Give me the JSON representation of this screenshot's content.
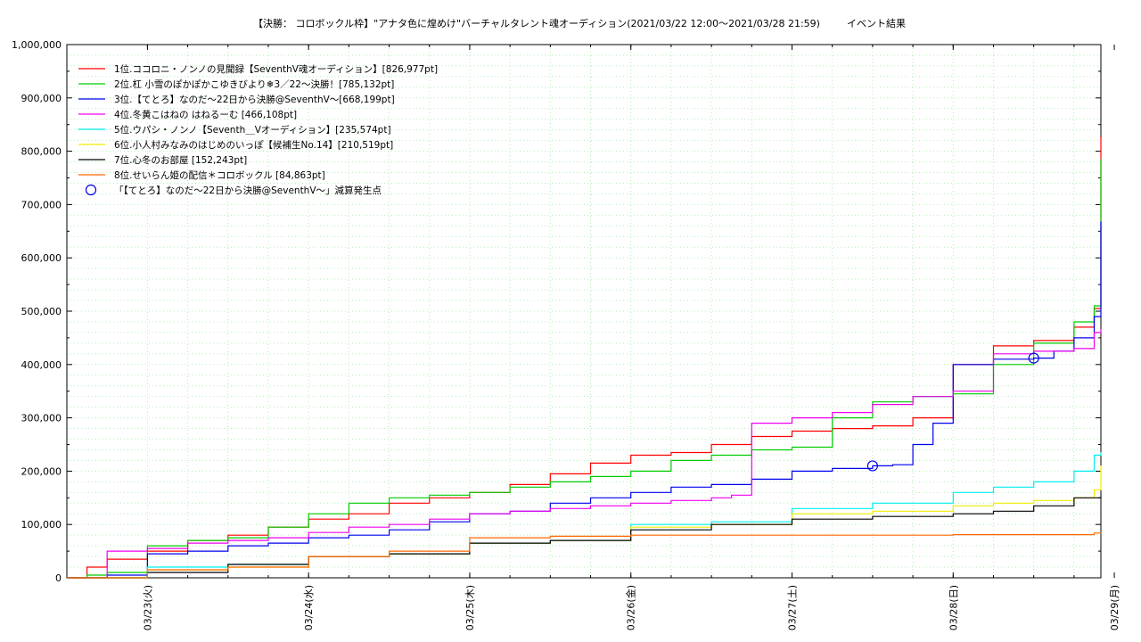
{
  "chart_data": {
    "type": "line",
    "title": "【決勝： コロボックル枠】\"アナタ色に煌めけ\"バーチャルタレント魂オーディション(2021/03/22 12:00〜2021/03/28 21:59)",
    "title_suffix": "イベント結果",
    "xlim": [
      "2021-03-22 12:00",
      "2021-03-28 22:00"
    ],
    "ylim": [
      0,
      1000000
    ],
    "x_tick_labels": [
      "03/23(火)",
      "03/24(水)",
      "03/25(木)",
      "03/26(金)",
      "03/27(土)",
      "03/28(日)",
      "03/29(月)"
    ],
    "x_tick_dates": [
      "2021-03-23 00:00",
      "2021-03-24 00:00",
      "2021-03-25 00:00",
      "2021-03-26 00:00",
      "2021-03-27 00:00",
      "2021-03-28 00:00",
      "2021-03-29 00:00"
    ],
    "y_tick_labels": [
      "0",
      "100,000",
      "200,000",
      "300,000",
      "400,000",
      "500,000",
      "600,000",
      "700,000",
      "800,000",
      "900,000",
      "1,000,000"
    ],
    "y_tick_values": [
      0,
      100000,
      200000,
      300000,
      400000,
      500000,
      600000,
      700000,
      800000,
      900000,
      1000000
    ],
    "grid": true,
    "legend_position": "top-left",
    "series": [
      {
        "name": "1位.ココロニ・ノンノの見聞録【SeventhV魂オーディション】[826,977pt]",
        "color": "#ff0000",
        "x": [
          "2021-03-22 12:00",
          "2021-03-22 15:00",
          "2021-03-22 18:00",
          "2021-03-23 00:00",
          "2021-03-23 06:00",
          "2021-03-23 12:00",
          "2021-03-23 18:00",
          "2021-03-24 00:00",
          "2021-03-24 06:00",
          "2021-03-24 12:00",
          "2021-03-24 18:00",
          "2021-03-25 00:00",
          "2021-03-25 06:00",
          "2021-03-25 12:00",
          "2021-03-25 18:00",
          "2021-03-26 00:00",
          "2021-03-26 06:00",
          "2021-03-26 12:00",
          "2021-03-26 18:00",
          "2021-03-27 00:00",
          "2021-03-27 06:00",
          "2021-03-27 12:00",
          "2021-03-27 18:00",
          "2021-03-28 00:00",
          "2021-03-28 06:00",
          "2021-03-28 12:00",
          "2021-03-28 18:00",
          "2021-03-28 21:00",
          "2021-03-28 22:00"
        ],
        "y": [
          0,
          20000,
          35000,
          50000,
          70000,
          80000,
          95000,
          110000,
          120000,
          140000,
          150000,
          160000,
          175000,
          195000,
          215000,
          230000,
          235000,
          250000,
          265000,
          275000,
          280000,
          285000,
          300000,
          400000,
          435000,
          445000,
          470000,
          505000,
          826977
        ]
      },
      {
        "name": "2位.杠 小雪のぽかぽかこゆきびより❄3／22〜決勝！[785,132pt]",
        "color": "#00cc00",
        "x": [
          "2021-03-22 12:00",
          "2021-03-22 15:00",
          "2021-03-22 18:00",
          "2021-03-23 00:00",
          "2021-03-23 06:00",
          "2021-03-23 12:00",
          "2021-03-23 18:00",
          "2021-03-24 00:00",
          "2021-03-24 06:00",
          "2021-03-24 12:00",
          "2021-03-24 18:00",
          "2021-03-25 00:00",
          "2021-03-25 06:00",
          "2021-03-25 12:00",
          "2021-03-25 18:00",
          "2021-03-26 00:00",
          "2021-03-26 06:00",
          "2021-03-26 12:00",
          "2021-03-26 18:00",
          "2021-03-27 00:00",
          "2021-03-27 06:00",
          "2021-03-27 12:00",
          "2021-03-27 18:00",
          "2021-03-28 00:00",
          "2021-03-28 06:00",
          "2021-03-28 12:00",
          "2021-03-28 18:00",
          "2021-03-28 21:00",
          "2021-03-28 22:00"
        ],
        "y": [
          0,
          5000,
          10000,
          60000,
          70000,
          75000,
          95000,
          120000,
          140000,
          150000,
          155000,
          160000,
          170000,
          180000,
          190000,
          200000,
          220000,
          230000,
          240000,
          245000,
          300000,
          330000,
          340000,
          345000,
          400000,
          440000,
          480000,
          510000,
          785132
        ]
      },
      {
        "name": "3位.【てとろ】なのだ〜22日から決勝@SeventhV〜[668,199pt]",
        "color": "#0000ee",
        "x": [
          "2021-03-22 12:00",
          "2021-03-22 18:00",
          "2021-03-23 00:00",
          "2021-03-23 06:00",
          "2021-03-23 12:00",
          "2021-03-23 18:00",
          "2021-03-24 00:00",
          "2021-03-24 06:00",
          "2021-03-24 12:00",
          "2021-03-24 18:00",
          "2021-03-25 00:00",
          "2021-03-25 06:00",
          "2021-03-25 12:00",
          "2021-03-25 18:00",
          "2021-03-26 00:00",
          "2021-03-26 06:00",
          "2021-03-26 12:00",
          "2021-03-26 18:00",
          "2021-03-27 00:00",
          "2021-03-27 06:00",
          "2021-03-27 12:00",
          "2021-03-27 15:00",
          "2021-03-27 18:00",
          "2021-03-27 21:00",
          "2021-03-28 00:00",
          "2021-03-28 06:00",
          "2021-03-28 12:00",
          "2021-03-28 15:00",
          "2021-03-28 18:00",
          "2021-03-28 21:00",
          "2021-03-28 22:00"
        ],
        "y": [
          0,
          5000,
          45000,
          50000,
          60000,
          65000,
          75000,
          80000,
          90000,
          105000,
          120000,
          125000,
          140000,
          150000,
          160000,
          170000,
          175000,
          185000,
          200000,
          205000,
          210000,
          212000,
          250000,
          290000,
          400000,
          410000,
          412000,
          425000,
          450000,
          490000,
          668199
        ]
      },
      {
        "name": "4位.冬黄こはねの はねるーむ [466,108pt]",
        "color": "#ee00ee",
        "x": [
          "2021-03-22 12:00",
          "2021-03-22 18:00",
          "2021-03-23 00:00",
          "2021-03-23 06:00",
          "2021-03-23 12:00",
          "2021-03-23 18:00",
          "2021-03-24 00:00",
          "2021-03-24 06:00",
          "2021-03-24 12:00",
          "2021-03-24 18:00",
          "2021-03-25 00:00",
          "2021-03-25 06:00",
          "2021-03-25 12:00",
          "2021-03-25 18:00",
          "2021-03-26 00:00",
          "2021-03-26 06:00",
          "2021-03-26 12:00",
          "2021-03-26 15:00",
          "2021-03-26 18:00",
          "2021-03-27 00:00",
          "2021-03-27 06:00",
          "2021-03-27 12:00",
          "2021-03-27 18:00",
          "2021-03-28 00:00",
          "2021-03-28 06:00",
          "2021-03-28 12:00",
          "2021-03-28 18:00",
          "2021-03-28 21:00",
          "2021-03-28 22:00"
        ],
        "y": [
          0,
          50000,
          55000,
          65000,
          70000,
          75000,
          85000,
          95000,
          100000,
          110000,
          120000,
          125000,
          130000,
          135000,
          140000,
          145000,
          150000,
          155000,
          290000,
          300000,
          310000,
          325000,
          340000,
          350000,
          420000,
          425000,
          430000,
          460000,
          466108
        ]
      },
      {
        "name": "5位.ウパシ・ノンノ【Seventh＿Vオーディション】[235,574pt]",
        "color": "#00eeee",
        "x": [
          "2021-03-22 12:00",
          "2021-03-23 00:00",
          "2021-03-23 12:00",
          "2021-03-24 00:00",
          "2021-03-24 12:00",
          "2021-03-25 00:00",
          "2021-03-25 12:00",
          "2021-03-26 00:00",
          "2021-03-26 12:00",
          "2021-03-27 00:00",
          "2021-03-27 12:00",
          "2021-03-28 00:00",
          "2021-03-28 06:00",
          "2021-03-28 12:00",
          "2021-03-28 18:00",
          "2021-03-28 21:00",
          "2021-03-28 22:00"
        ],
        "y": [
          0,
          20000,
          25000,
          40000,
          45000,
          65000,
          70000,
          100000,
          105000,
          130000,
          140000,
          160000,
          170000,
          180000,
          200000,
          230000,
          235574
        ]
      },
      {
        "name": "6位.小人村みなみのはじめのいっぽ【候補生No.14】[210,519pt]",
        "color": "#eeee00",
        "x": [
          "2021-03-22 12:00",
          "2021-03-23 00:00",
          "2021-03-23 12:00",
          "2021-03-24 00:00",
          "2021-03-24 12:00",
          "2021-03-25 00:00",
          "2021-03-25 12:00",
          "2021-03-26 00:00",
          "2021-03-26 12:00",
          "2021-03-27 00:00",
          "2021-03-27 12:00",
          "2021-03-28 00:00",
          "2021-03-28 06:00",
          "2021-03-28 12:00",
          "2021-03-28 18:00",
          "2021-03-28 21:00",
          "2021-03-28 22:00"
        ],
        "y": [
          0,
          15000,
          20000,
          40000,
          45000,
          65000,
          70000,
          95000,
          100000,
          120000,
          125000,
          135000,
          140000,
          145000,
          150000,
          165000,
          210519
        ]
      },
      {
        "name": "7位.心冬のお部屋 [152,243pt]",
        "color": "#000000",
        "x": [
          "2021-03-22 12:00",
          "2021-03-23 00:00",
          "2021-03-23 12:00",
          "2021-03-24 00:00",
          "2021-03-24 12:00",
          "2021-03-25 00:00",
          "2021-03-25 12:00",
          "2021-03-26 00:00",
          "2021-03-26 12:00",
          "2021-03-27 00:00",
          "2021-03-27 12:00",
          "2021-03-28 00:00",
          "2021-03-28 06:00",
          "2021-03-28 12:00",
          "2021-03-28 18:00",
          "2021-03-28 22:00"
        ],
        "y": [
          0,
          10000,
          25000,
          40000,
          45000,
          65000,
          70000,
          90000,
          100000,
          110000,
          115000,
          120000,
          125000,
          135000,
          150000,
          152243
        ]
      },
      {
        "name": "8位.せいらん姫の配信＊コロボックル [84,863pt]",
        "color": "#ff6600",
        "x": [
          "2021-03-22 12:00",
          "2021-03-23 00:00",
          "2021-03-23 12:00",
          "2021-03-24 00:00",
          "2021-03-24 12:00",
          "2021-03-25 00:00",
          "2021-03-25 12:00",
          "2021-03-26 00:00",
          "2021-03-27 00:00",
          "2021-03-28 00:00",
          "2021-03-28 21:00",
          "2021-03-28 22:00"
        ],
        "y": [
          0,
          15000,
          20000,
          40000,
          50000,
          75000,
          78000,
          80000,
          80000,
          81000,
          84000,
          84863
        ]
      }
    ],
    "markers": {
      "label": "「【てとろ】なのだ〜22日から決勝@SeventhV〜」減算発生点",
      "color": "#0000ee",
      "points": [
        {
          "x": "2021-03-27 12:00",
          "y": 210000
        },
        {
          "x": "2021-03-28 12:00",
          "y": 412000
        }
      ]
    }
  }
}
